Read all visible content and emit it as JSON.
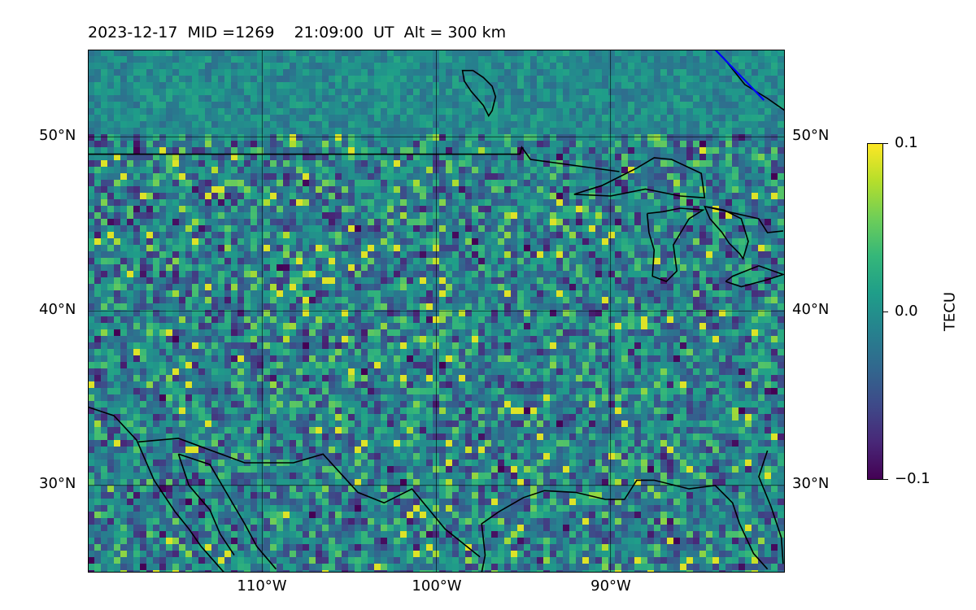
{
  "title": "2023-12-17  MID =1269    21:09:00  UT  Alt = 300 km",
  "map": {
    "type": "heatmap",
    "variable": "TECU",
    "value_range": [
      -0.1,
      0.1
    ],
    "colormap": "viridis",
    "colormap_stops": [
      "#440154",
      "#482878",
      "#3e4a89",
      "#31688e",
      "#26828e",
      "#1f9e89",
      "#35b779",
      "#6ece58",
      "#b5de2b",
      "#fde725"
    ],
    "field_note": "random fluctuations around ~-0.01 TECU; smoother area north of 50N",
    "extent": {
      "lon": [
        -120,
        -80
      ],
      "lat": [
        25,
        55
      ]
    },
    "gridlines": true,
    "lat_labels": [
      "50°N",
      "40°N",
      "30°N"
    ],
    "lon_labels": [
      "110°W",
      "100°W",
      "90°W"
    ],
    "coastline_color": "#000000",
    "track_color": "#0000ff"
  },
  "colorbar": {
    "label": "TECU",
    "ticks": [
      "0.1",
      "0.0",
      "−0.1"
    ]
  }
}
